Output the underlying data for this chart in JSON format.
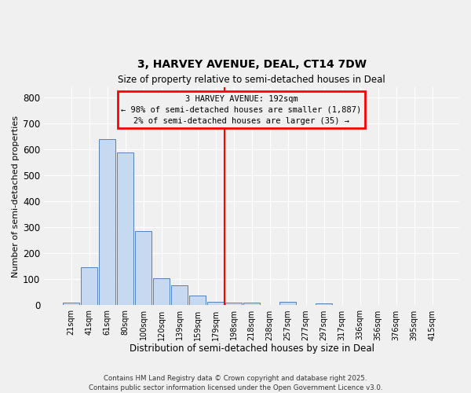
{
  "title": "3, HARVEY AVENUE, DEAL, CT14 7DW",
  "subtitle": "Size of property relative to semi-detached houses in Deal",
  "xlabel": "Distribution of semi-detached houses by size in Deal",
  "ylabel": "Number of semi-detached properties",
  "bar_labels": [
    "21sqm",
    "41sqm",
    "61sqm",
    "80sqm",
    "100sqm",
    "120sqm",
    "139sqm",
    "159sqm",
    "179sqm",
    "198sqm",
    "218sqm",
    "238sqm",
    "257sqm",
    "277sqm",
    "297sqm",
    "317sqm",
    "336sqm",
    "356sqm",
    "376sqm",
    "395sqm",
    "415sqm"
  ],
  "bar_heights": [
    10,
    148,
    640,
    590,
    287,
    104,
    76,
    37,
    15,
    12,
    12,
    0,
    13,
    0,
    8,
    0,
    0,
    0,
    0,
    0,
    0
  ],
  "bar_color": "#c6d9f1",
  "bar_edge_color": "#4f81bd",
  "vline_index": 9,
  "vline_color": "red",
  "annotation_title": "3 HARVEY AVENUE: 192sqm",
  "annotation_line1": "← 98% of semi-detached houses are smaller (1,887)",
  "annotation_line2": "2% of semi-detached houses are larger (35) →",
  "annotation_box_color": "red",
  "ylim": [
    0,
    840
  ],
  "yticks": [
    0,
    100,
    200,
    300,
    400,
    500,
    600,
    700,
    800
  ],
  "footer1": "Contains HM Land Registry data © Crown copyright and database right 2025.",
  "footer2": "Contains public sector information licensed under the Open Government Licence v3.0.",
  "bg_color": "#f0f0f0",
  "grid_color": "#ffffff"
}
